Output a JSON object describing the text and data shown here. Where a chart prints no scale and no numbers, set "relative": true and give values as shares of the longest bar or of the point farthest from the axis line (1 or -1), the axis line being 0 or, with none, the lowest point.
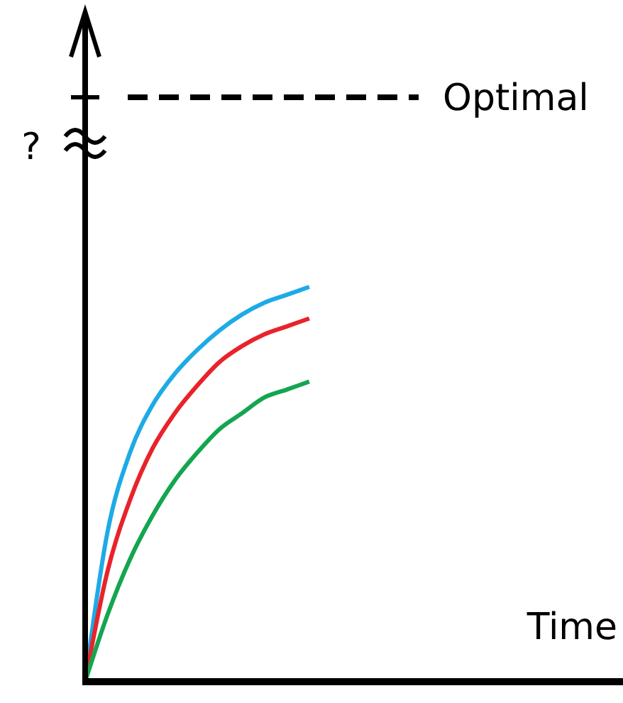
{
  "chart_data": {
    "type": "line",
    "relative": true,
    "xlabel": "Time",
    "categories": [
      null,
      null,
      null,
      null,
      null,
      null,
      null,
      null,
      null,
      null,
      null,
      null,
      null,
      null,
      null,
      null,
      null,
      null,
      null,
      null,
      null,
      null,
      null,
      null
    ],
    "series": [
      {
        "color": "#1eaae6",
        "values": [
          0,
          0.38,
          0.58,
          0.7,
          0.78,
          0.84,
          0.89,
          0.93,
          0.96,
          0.98,
          1,
          null,
          null,
          null,
          null,
          null,
          null,
          null,
          null,
          null,
          null,
          null,
          null,
          null
        ]
      },
      {
        "color": "#e8232a",
        "values": [
          0,
          0.28,
          0.46,
          0.59,
          0.68,
          0.75,
          0.81,
          0.85,
          0.88,
          0.9,
          0.92,
          null,
          null,
          null,
          null,
          null,
          null,
          null,
          null,
          null,
          null,
          null,
          null,
          null
        ]
      },
      {
        "color": "#14a550",
        "values": [
          0,
          0.17,
          0.31,
          0.42,
          0.51,
          0.58,
          0.64,
          0.68,
          0.72,
          0.74,
          0.76,
          null,
          null,
          null,
          null,
          null,
          null,
          null,
          null,
          null,
          null,
          null,
          null,
          null
        ]
      }
    ],
    "ref_lines": [
      {
        "axis": "y",
        "value": 1.48,
        "label": "Optimal",
        "color": "#000000",
        "line_style": "dashed"
      }
    ],
    "annotations": [
      "?"
    ],
    "marker": "none",
    "line_style": "solid"
  }
}
